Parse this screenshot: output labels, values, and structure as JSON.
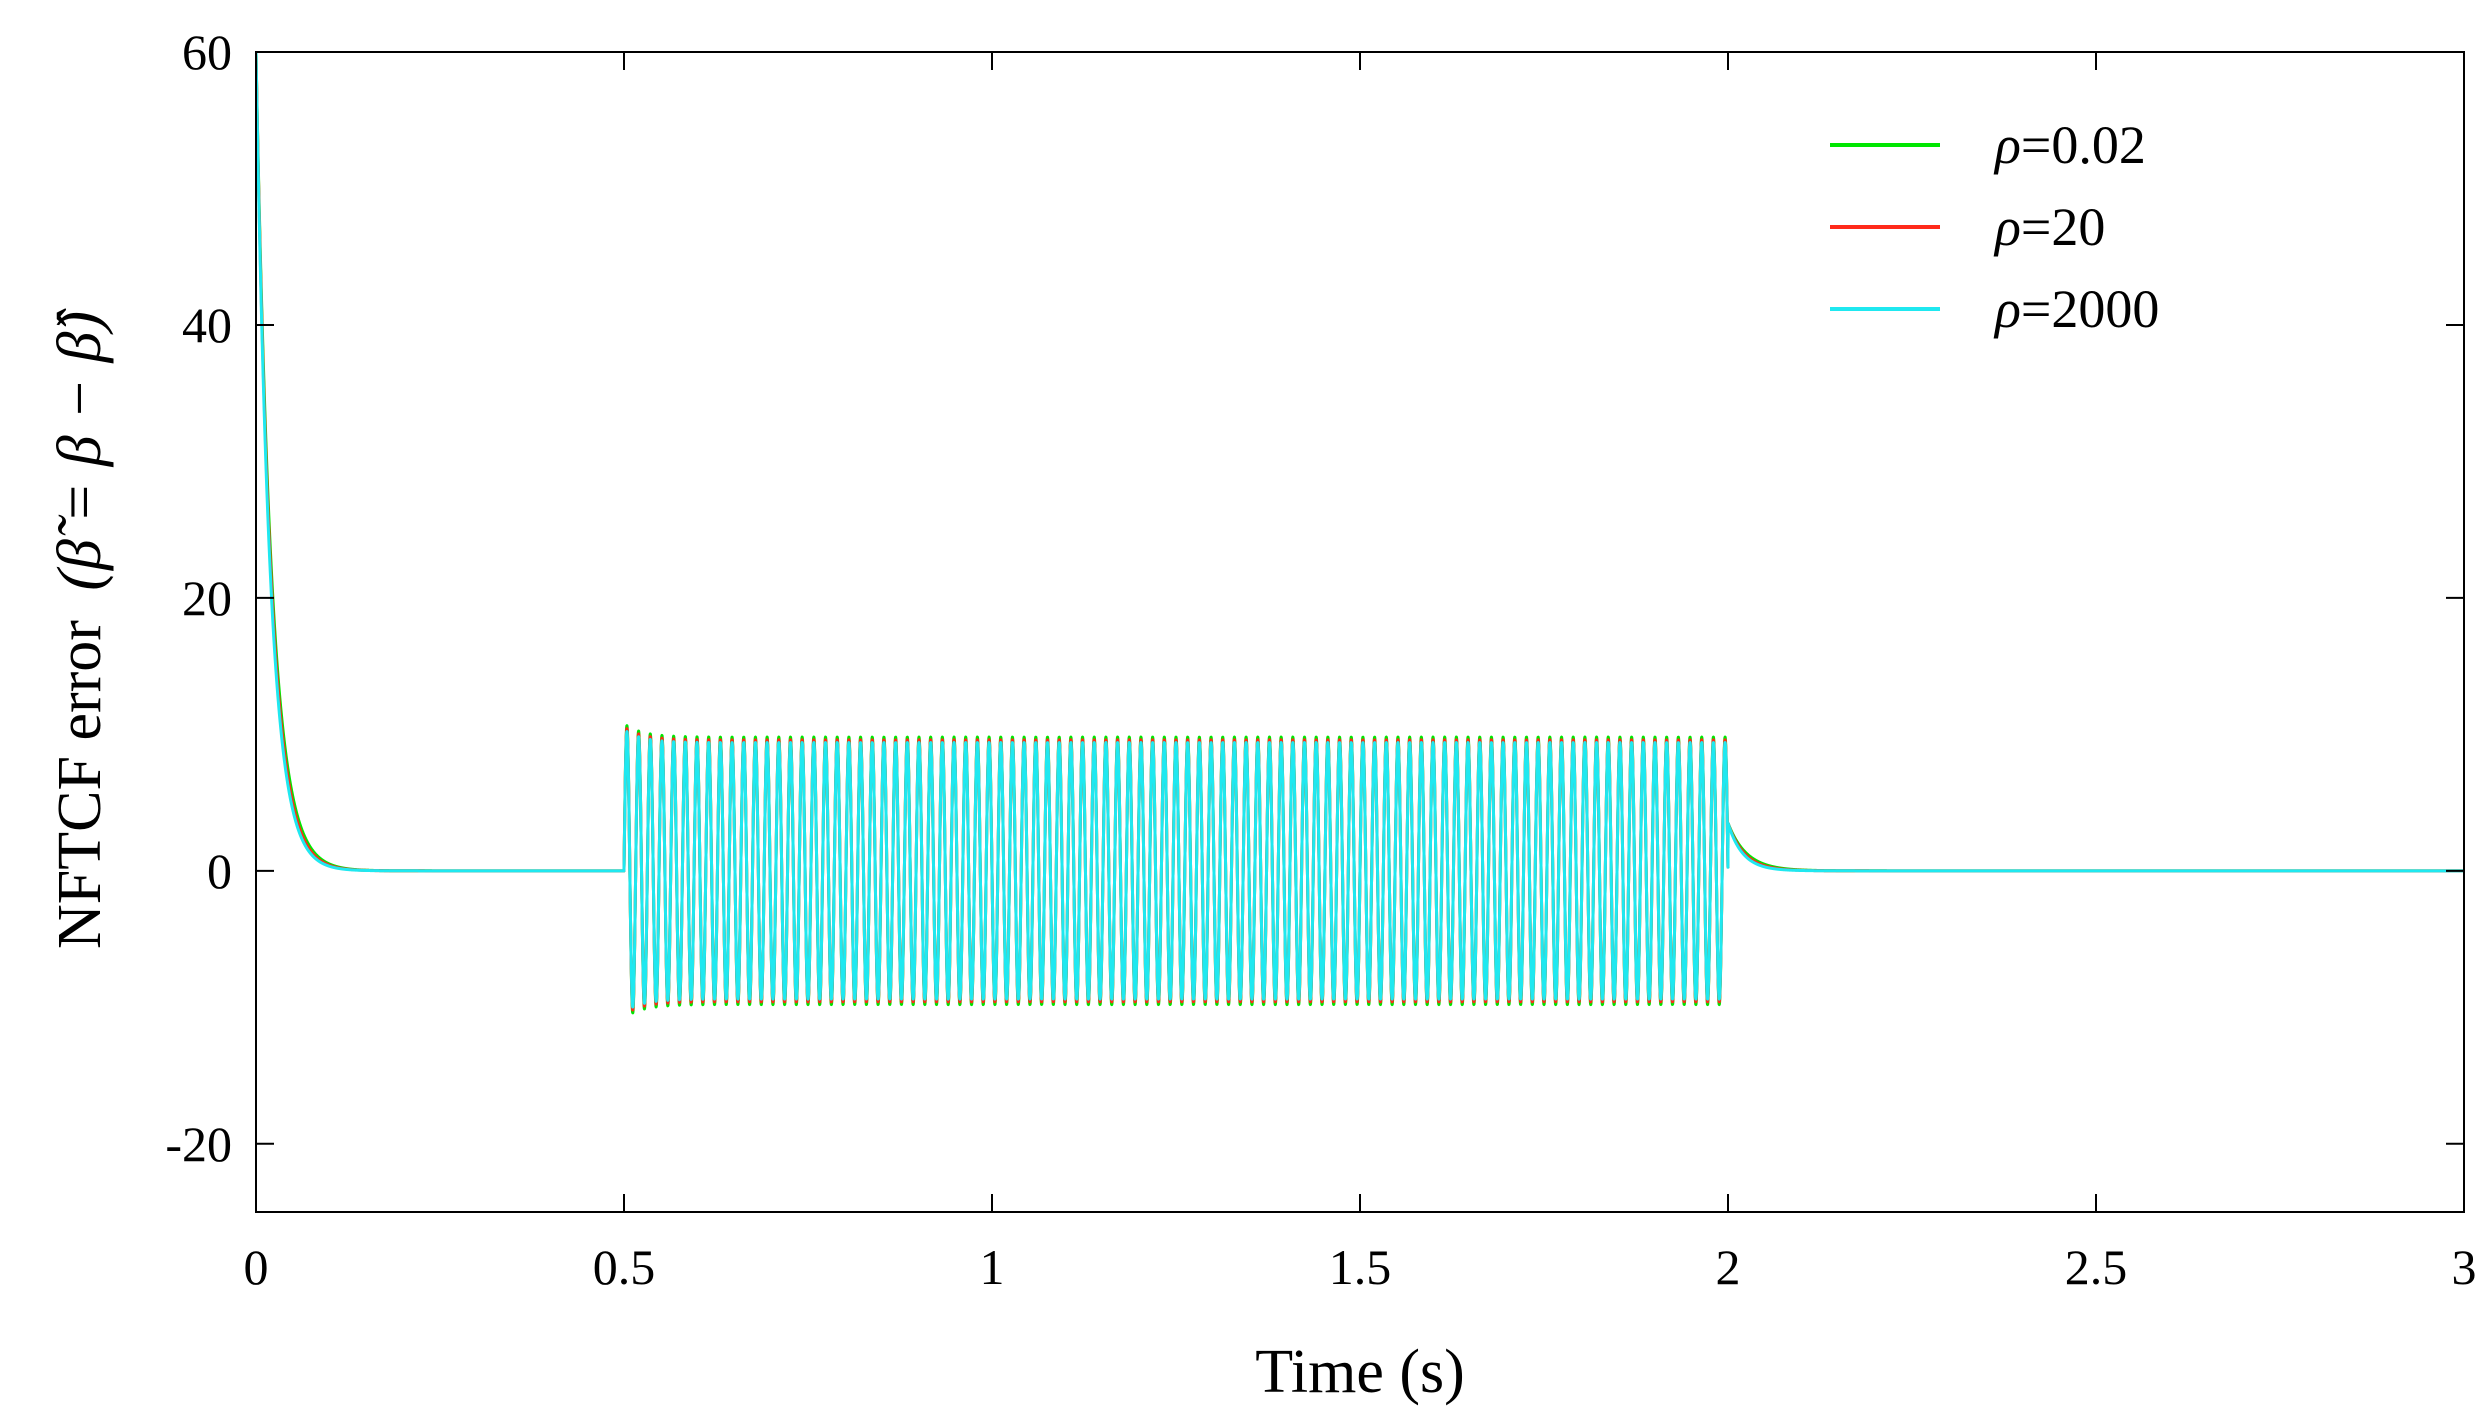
{
  "chart_data": {
    "type": "line",
    "xlabel": "Time (s)",
    "ylabel": "NFTCF error",
    "ylabel_formula": "(β̃ = β − β̂)",
    "xlim": [
      0,
      3
    ],
    "ylim": [
      -25,
      60
    ],
    "x_ticks": [
      0,
      0.5,
      1,
      1.5,
      2,
      2.5,
      3
    ],
    "x_tick_labels": [
      "0",
      "0.5",
      "1",
      "1.5",
      "2",
      "2.5",
      "3"
    ],
    "y_ticks": [
      -20,
      0,
      20,
      40,
      60
    ],
    "y_tick_labels": [
      "-20",
      "0",
      "20",
      "40",
      "60"
    ],
    "grid": false,
    "legend_position": "top-right",
    "series": [
      {
        "name": "ρ=0.02",
        "symbol": "ρ",
        "value_text": "=0.02",
        "color": "#00e600",
        "initial_value": 60,
        "decay_rate": 48,
        "oscillation_start": 0.5,
        "oscillation_end": 2.0,
        "oscillation_amplitude": 9.8,
        "oscillation_frequency": 63,
        "post_transient": 3.5,
        "post_decay_rate": 40
      },
      {
        "name": "ρ=20",
        "symbol": "ρ",
        "value_text": "=20",
        "color": "#ff2a1a",
        "initial_value": 60,
        "decay_rate": 50,
        "oscillation_start": 0.5,
        "oscillation_end": 2.0,
        "oscillation_amplitude": 9.6,
        "oscillation_frequency": 63,
        "post_transient": 3.5,
        "post_decay_rate": 45
      },
      {
        "name": "ρ=2000",
        "symbol": "ρ",
        "value_text": "=2000",
        "color": "#1fe8f0",
        "initial_value": 60,
        "decay_rate": 52,
        "oscillation_start": 0.5,
        "oscillation_end": 2.0,
        "oscillation_amplitude": 9.4,
        "oscillation_frequency": 63,
        "post_transient": 3.5,
        "post_decay_rate": 50
      }
    ]
  }
}
